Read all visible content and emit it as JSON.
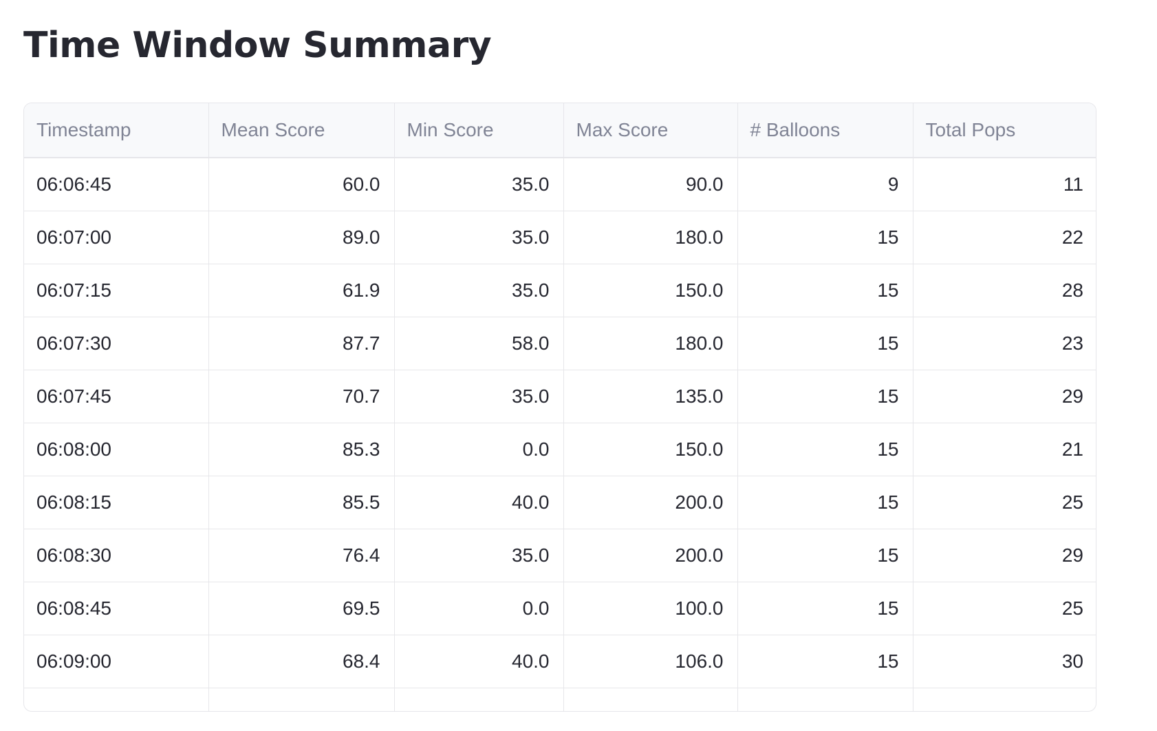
{
  "page": {
    "title": "Time Window Summary"
  },
  "table": {
    "columns": [
      "Timestamp",
      "Mean Score",
      "Min Score",
      "Max Score",
      "# Balloons",
      "Total Pops"
    ],
    "rows": [
      [
        "06:06:45",
        "60.0",
        "35.0",
        "90.0",
        "9",
        "11"
      ],
      [
        "06:07:00",
        "89.0",
        "35.0",
        "180.0",
        "15",
        "22"
      ],
      [
        "06:07:15",
        "61.9",
        "35.0",
        "150.0",
        "15",
        "28"
      ],
      [
        "06:07:30",
        "87.7",
        "58.0",
        "180.0",
        "15",
        "23"
      ],
      [
        "06:07:45",
        "70.7",
        "35.0",
        "135.0",
        "15",
        "29"
      ],
      [
        "06:08:00",
        "85.3",
        "0.0",
        "150.0",
        "15",
        "21"
      ],
      [
        "06:08:15",
        "85.5",
        "40.0",
        "200.0",
        "15",
        "25"
      ],
      [
        "06:08:30",
        "76.4",
        "35.0",
        "200.0",
        "15",
        "29"
      ],
      [
        "06:08:45",
        "69.5",
        "0.0",
        "100.0",
        "15",
        "25"
      ],
      [
        "06:09:00",
        "68.4",
        "40.0",
        "106.0",
        "15",
        "30"
      ]
    ]
  },
  "colors": {
    "title": "#262730",
    "header_text": "#808495",
    "header_bg": "#f8f9fb",
    "cell_text": "#262730",
    "border": "#e6e6ea"
  }
}
